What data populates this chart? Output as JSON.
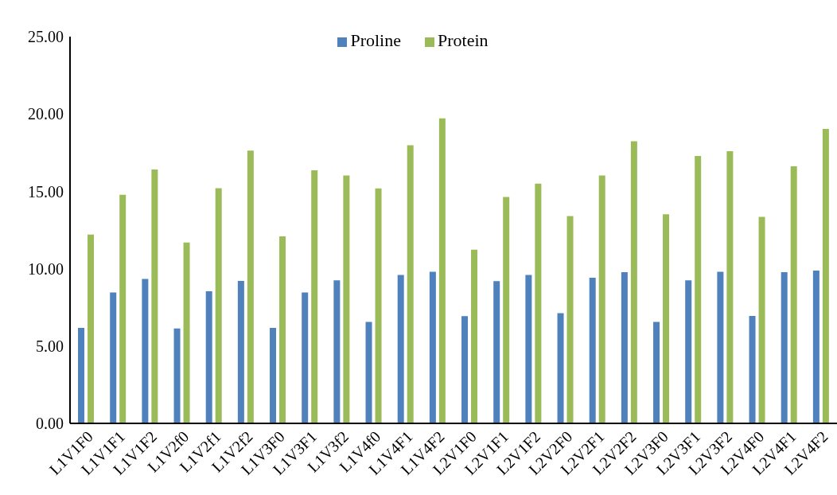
{
  "chart_data": {
    "type": "bar",
    "categories": [
      "L1V1F0",
      "L1V1F1",
      "L1V1F2",
      "L1V2f0",
      "L1V2f1",
      "L1V2f2",
      "L1V3F0",
      "L1V3F1",
      "L1V3f2",
      "L1V4f0",
      "L1V4F1",
      "L1V4F2",
      "L2V1F0",
      "L2V1F1",
      "L2V1F2",
      "L2V2F0",
      "L2V2F1",
      "L2V2F2",
      "L2V3F0",
      "L2V3F1",
      "L2V3F2",
      "L2V4F0",
      "L2V4F1",
      "L2V4F2"
    ],
    "series": [
      {
        "name": "Proline",
        "color": "#4f81bd",
        "values": [
          6.17,
          8.46,
          9.34,
          6.14,
          8.54,
          9.21,
          6.17,
          8.46,
          9.24,
          6.56,
          9.59,
          9.8,
          6.93,
          9.2,
          9.59,
          7.13,
          9.42,
          9.78,
          6.56,
          9.24,
          9.8,
          6.95,
          9.78,
          9.88
        ]
      },
      {
        "name": "Protein",
        "color": "#9bbb59",
        "values": [
          12.21,
          14.78,
          16.41,
          11.69,
          15.2,
          17.63,
          12.09,
          16.36,
          16.02,
          15.19,
          17.98,
          19.71,
          11.23,
          14.63,
          15.49,
          13.4,
          16.03,
          18.23,
          13.51,
          17.29,
          17.59,
          13.35,
          16.62,
          19.03
        ]
      }
    ],
    "ylim": [
      0,
      25
    ],
    "yticks": [
      {
        "value": 0,
        "label": "0.00"
      },
      {
        "value": 5,
        "label": "5.00"
      },
      {
        "value": 10,
        "label": "10.00"
      },
      {
        "value": 15,
        "label": "15.00"
      },
      {
        "value": 20,
        "label": "20.00"
      },
      {
        "value": 25,
        "label": "25.00"
      }
    ],
    "grid": false,
    "legend": "top"
  }
}
